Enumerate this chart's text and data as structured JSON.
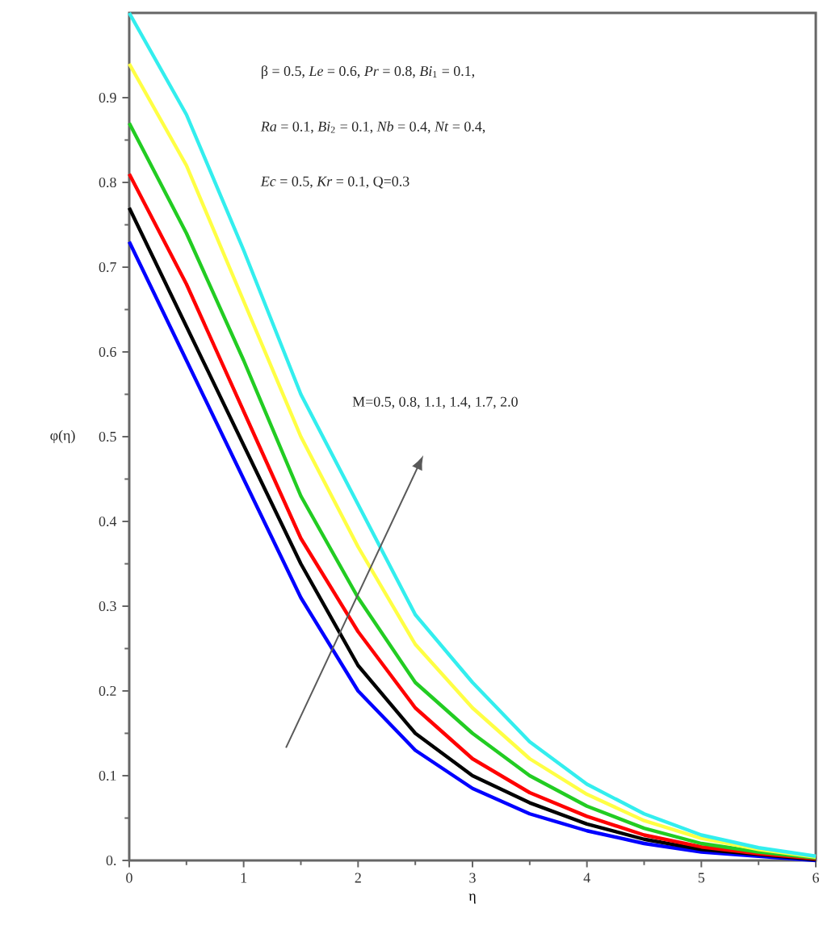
{
  "chart_data": {
    "type": "line",
    "xlabel": "η",
    "ylabel": "φ(η)",
    "x": [
      0,
      0.5,
      1,
      1.5,
      2,
      2.5,
      3,
      3.5,
      4,
      4.5,
      5,
      5.5,
      6
    ],
    "series": [
      {
        "color": "#0000ff",
        "values": [
          0.73,
          0.59,
          0.45,
          0.31,
          0.2,
          0.13,
          0.085,
          0.055,
          0.035,
          0.02,
          0.01,
          0.005,
          0
        ]
      },
      {
        "color": "#000000",
        "values": [
          0.77,
          0.63,
          0.49,
          0.35,
          0.23,
          0.15,
          0.1,
          0.068,
          0.043,
          0.025,
          0.013,
          0.007,
          0.001
        ]
      },
      {
        "color": "#ff0000",
        "values": [
          0.81,
          0.68,
          0.53,
          0.38,
          0.27,
          0.18,
          0.12,
          0.08,
          0.052,
          0.03,
          0.016,
          0.008,
          0.002
        ]
      },
      {
        "color": "#22cc22",
        "values": [
          0.87,
          0.74,
          0.59,
          0.43,
          0.31,
          0.21,
          0.15,
          0.1,
          0.064,
          0.038,
          0.02,
          0.01,
          0.003
        ]
      },
      {
        "color": "#ffff44",
        "values": [
          0.94,
          0.82,
          0.66,
          0.5,
          0.37,
          0.255,
          0.18,
          0.12,
          0.078,
          0.047,
          0.026,
          0.013,
          0.004
        ]
      },
      {
        "color": "#33eeee",
        "values": [
          1.0,
          0.88,
          0.72,
          0.55,
          0.42,
          0.29,
          0.21,
          0.14,
          0.09,
          0.055,
          0.03,
          0.015,
          0.005
        ]
      }
    ],
    "xlim": [
      0,
      6
    ],
    "ylim": [
      0,
      1
    ],
    "xticks": [
      0,
      1,
      2,
      3,
      4,
      5,
      6
    ],
    "yticks": [
      {
        "value": 0,
        "label": "0."
      },
      0.1,
      0.2,
      0.3,
      0.4,
      0.5,
      0.6,
      0.7,
      0.8,
      0.9
    ],
    "annotations": [
      "β = 0.5, *Le* = 0.6, *Pr* = 0.8, *Bi*$_{1}$ = 0.1,",
      "*Ra* = 0.1, *Bi*$_{2}$ = 0.1, *Nb* = 0.4, *Nt* = 0.4,",
      "*Ec* = 0.5, *Kr* = 0.1, Q=0.3",
      "M=0.5, 0.8, 1.1, 1.4, 1.7, 2.0"
    ],
    "line_style": "solid",
    "marker": "none",
    "grid": false
  }
}
